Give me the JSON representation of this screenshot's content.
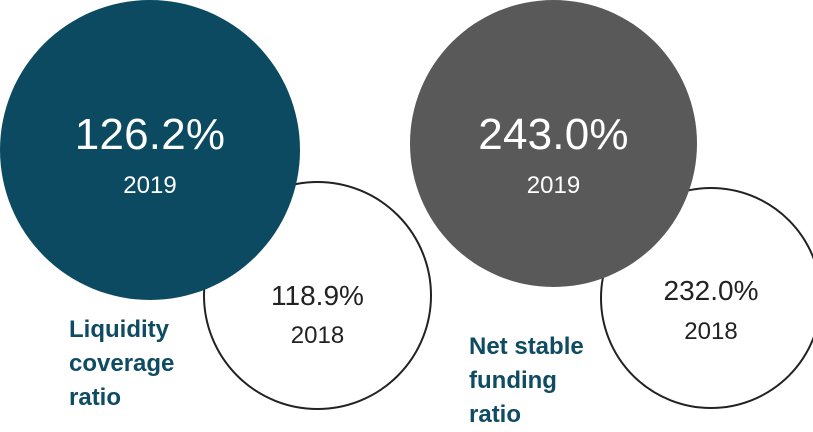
{
  "chart_data": [
    {
      "type": "bubble-comparison",
      "label": "Liquidity coverage ratio",
      "current": {
        "year": "2019",
        "value": 126.2,
        "display": "126.2%"
      },
      "previous": {
        "year": "2018",
        "value": 118.9,
        "display": "118.9%"
      },
      "colors": {
        "current_fill": "#0b4a60",
        "previous_outline": "#222222",
        "label": "#0f4b62"
      }
    },
    {
      "type": "bubble-comparison",
      "label": "Net stable funding ratio",
      "current": {
        "year": "2019",
        "value": 243.0,
        "display": "243.0%"
      },
      "previous": {
        "year": "2018",
        "value": 232.0,
        "display": "232.0%"
      },
      "colors": {
        "current_fill": "#595959",
        "previous_outline": "#222222",
        "label": "#0f4b62"
      }
    }
  ]
}
